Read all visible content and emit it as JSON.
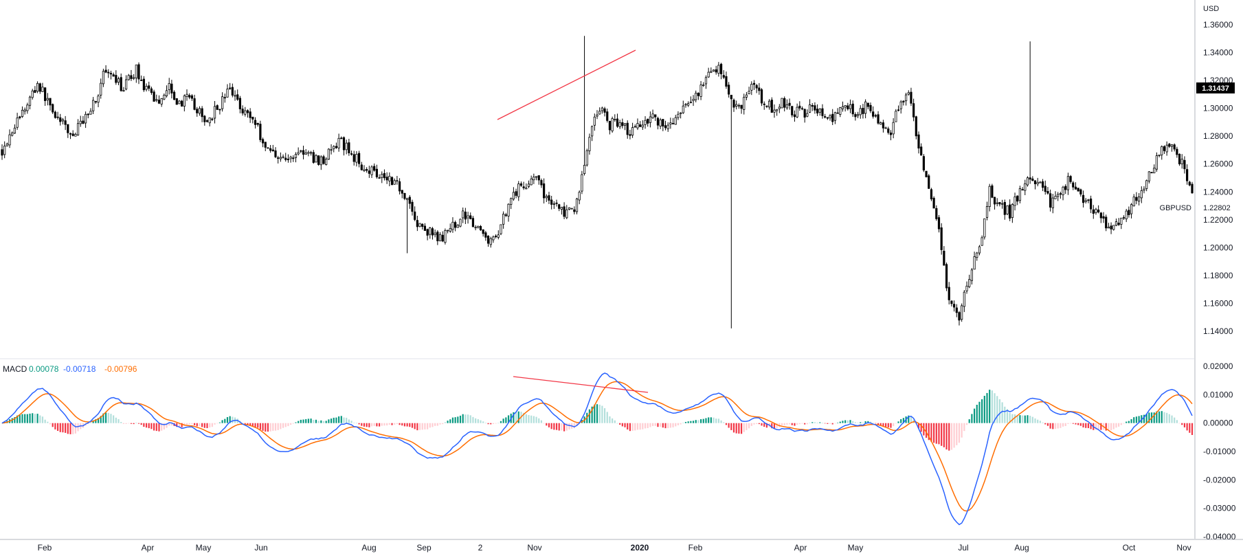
{
  "chart_data": [
    {
      "type": "candlestick",
      "symbol_label": "GBPUSD",
      "currency": "USD",
      "last_price": "1.31437",
      "marked_price": "1.22802",
      "colors": {
        "candle": "#000000",
        "trendline": "#f23645",
        "price_badge_bg": "#000000"
      },
      "y_ticks": [
        "1.36000",
        "1.34000",
        "1.32000",
        "1.30000",
        "1.28000",
        "1.26000",
        "1.24000",
        "1.22000",
        "1.20000",
        "1.18000",
        "1.16000",
        "1.14000"
      ],
      "y_ticks_numeric": [
        1.36,
        1.34,
        1.32,
        1.3,
        1.28,
        1.26,
        1.24,
        1.22,
        1.2,
        1.18,
        1.16,
        1.14
      ],
      "ylim": [
        1.1325,
        1.3835
      ],
      "x_tick_labels": [
        "Feb",
        "Apr",
        "May",
        "Jun",
        "Aug",
        "Sep",
        "2",
        "Nov",
        "2020",
        "Feb",
        "Apr",
        "May",
        "Jul",
        "Aug",
        "Oct",
        "Nov"
      ],
      "close_path_t": [
        0,
        4,
        9,
        14,
        18,
        23,
        28,
        33,
        38,
        40,
        44,
        48,
        53,
        57,
        62,
        66,
        70,
        72,
        76,
        80,
        85,
        90,
        95,
        100,
        104,
        108,
        113,
        117,
        121,
        126,
        130,
        134,
        139,
        143,
        147,
        151,
        155,
        160,
        164,
        168,
        172,
        176,
        180,
        184,
        188,
        194,
        198,
        202,
        206,
        210,
        214,
        218,
        222,
        226,
        230,
        233,
        237,
        240,
        244,
        248,
        252,
        257,
        261,
        265,
        270,
        274,
        278,
        283,
        287,
        291,
        296,
        300,
        304,
        308,
        312,
        317,
        320,
        324,
        328,
        331,
        334,
        338,
        342,
        346,
        350,
        354,
        358,
        362,
        366,
        370,
        374,
        378,
        382,
        386,
        390,
        394,
        398,
        402,
        406,
        410,
        414,
        418,
        422,
        426,
        430,
        434,
        438,
        442,
        446,
        450,
        454,
        458,
        462,
        466,
        470
      ],
      "close_path_price": [
        1.27,
        1.285,
        1.3,
        1.318,
        1.305,
        1.29,
        1.28,
        1.295,
        1.31,
        1.325,
        1.32,
        1.315,
        1.328,
        1.312,
        1.305,
        1.318,
        1.302,
        1.308,
        1.302,
        1.29,
        1.3,
        1.314,
        1.3,
        1.29,
        1.272,
        1.268,
        1.262,
        1.27,
        1.266,
        1.262,
        1.27,
        1.276,
        1.265,
        1.258,
        1.255,
        1.252,
        1.248,
        1.236,
        1.216,
        1.212,
        1.206,
        1.21,
        1.22,
        1.225,
        1.212,
        1.204,
        1.222,
        1.24,
        1.244,
        1.252,
        1.238,
        1.232,
        1.225,
        1.225,
        1.26,
        1.29,
        1.3,
        1.288,
        1.292,
        1.282,
        1.29,
        1.295,
        1.287,
        1.29,
        1.3,
        1.31,
        1.32,
        1.332,
        1.308,
        1.3,
        1.318,
        1.306,
        1.3,
        1.304,
        1.298,
        1.296,
        1.305,
        1.295,
        1.29,
        1.3,
        1.302,
        1.295,
        1.305,
        1.29,
        1.28,
        1.3,
        1.31,
        1.27,
        1.24,
        1.21,
        1.16,
        1.15,
        1.18,
        1.2,
        1.24,
        1.23,
        1.225,
        1.24,
        1.25,
        1.245,
        1.232,
        1.24,
        1.25,
        1.238,
        1.23,
        1.22,
        1.215,
        1.22,
        1.23,
        1.24,
        1.255,
        1.27,
        1.27,
        1.262,
        1.24
      ],
      "trendline_dates": [
        "~Oct 2019",
        "~Dec 2019"
      ],
      "trendline_prices": [
        1.292,
        1.341
      ]
    },
    {
      "type": "macd",
      "title": "MACD",
      "values": {
        "histogram": "0.00078",
        "macd": "-0.00718",
        "signal": "-0.00796"
      },
      "colors": {
        "histogram_label": "#089981",
        "macd_line": "#2962ff",
        "signal_line": "#ff6d00",
        "hist_up_strong": "#089981",
        "hist_up_weak": "#b2dfdb",
        "hist_down_strong": "#f23645",
        "hist_down_weak": "#ffcdd2",
        "trendline": "#f23645"
      },
      "y_ticks": [
        "0.02000",
        "0.01000",
        "0.00000",
        "-0.01000",
        "-0.02000",
        "-0.03000",
        "-0.04000"
      ],
      "y_ticks_numeric": [
        0.02,
        0.01,
        0.0,
        -0.01,
        -0.02,
        -0.03,
        -0.04
      ],
      "ylim": [
        -0.0405,
        0.021
      ]
    }
  ]
}
